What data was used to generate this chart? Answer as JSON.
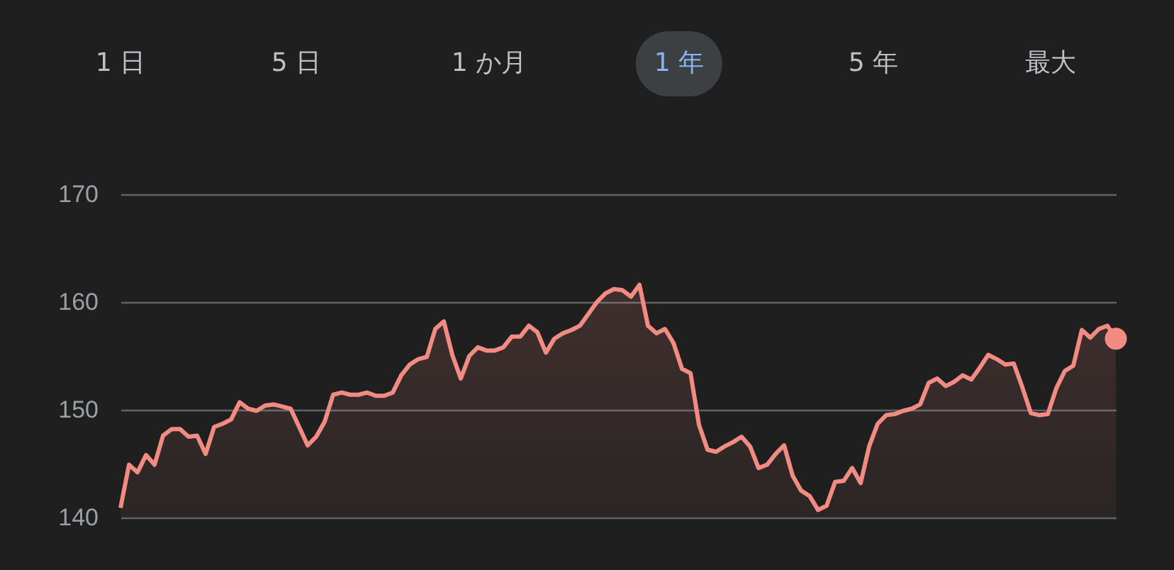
{
  "chart_data": {
    "type": "area",
    "annotations": [
      "1 日",
      "5 日",
      "1 か月",
      "1 年",
      "5 年",
      "最大"
    ],
    "categories": [
      null,
      null,
      null,
      null,
      null,
      null,
      null,
      null,
      null,
      null,
      null,
      null,
      null,
      null,
      null,
      null,
      null,
      null,
      null,
      null,
      null,
      null,
      null,
      null,
      null,
      null,
      null,
      null,
      null,
      null,
      null,
      null,
      null,
      null,
      null,
      null,
      null,
      null,
      null,
      null,
      null,
      null,
      null,
      null,
      null,
      null,
      null,
      null,
      null,
      null,
      null,
      null,
      null,
      null,
      null,
      null,
      null,
      null,
      null,
      null,
      null,
      null,
      null,
      null,
      null,
      null,
      null,
      null,
      null,
      null,
      null,
      null,
      null,
      null,
      null,
      null,
      null,
      null,
      null,
      null,
      null,
      null,
      null,
      null,
      null,
      null,
      null,
      null,
      null,
      null,
      null,
      null,
      null,
      null,
      null,
      null,
      null,
      null,
      null,
      null,
      null,
      null,
      null,
      null,
      null,
      null,
      null,
      null,
      null,
      null,
      null,
      null,
      null,
      null,
      null,
      null,
      null,
      null
    ],
    "series": [
      {
        "color": "#f28b82",
        "values": [
          140.9,
          144.9,
          144.2,
          145.8,
          144.9,
          147.6,
          148.2,
          148.2,
          147.5,
          147.6,
          145.9,
          148.4,
          148.7,
          149.1,
          150.7,
          150.1,
          149.9,
          150.4,
          150.5,
          150.3,
          150.1,
          148.4,
          146.7,
          147.5,
          148.9,
          151.4,
          151.6,
          151.4,
          151.4,
          151.6,
          151.3,
          151.3,
          151.6,
          153.2,
          154.2,
          154.7,
          154.9,
          157.5,
          158.2,
          155.1,
          152.9,
          155.0,
          155.8,
          155.5,
          155.5,
          155.8,
          156.8,
          156.8,
          157.8,
          157.2,
          155.3,
          156.6,
          157.1,
          157.4,
          157.8,
          158.9,
          160.0,
          160.8,
          161.2,
          161.1,
          160.5,
          161.6,
          157.8,
          157.1,
          157.5,
          156.2,
          153.8,
          153.4,
          148.6,
          146.3,
          146.1,
          146.6,
          147.0,
          147.5,
          146.6,
          144.6,
          144.9,
          145.9,
          146.7,
          143.9,
          142.5,
          142.0,
          140.7,
          141.1,
          143.3,
          143.4,
          144.6,
          143.2,
          146.6,
          148.7,
          149.5,
          149.6,
          149.9,
          150.1,
          150.5,
          152.5,
          152.9,
          152.2,
          152.6,
          153.2,
          152.8,
          153.9,
          155.1,
          154.7,
          154.2,
          154.3,
          152.1,
          149.7,
          149.5,
          149.6,
          152.0,
          153.6,
          154.1,
          157.4,
          156.7,
          157.5,
          157.8,
          156.6
        ]
      }
    ],
    "ylim": [
      140,
      170
    ],
    "yticks": [
      140,
      150,
      160,
      170
    ],
    "grid": "y"
  }
}
